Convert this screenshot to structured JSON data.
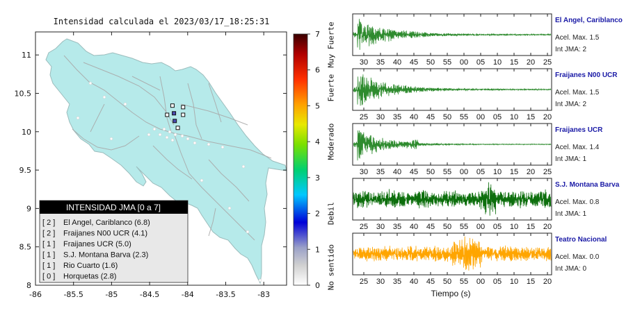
{
  "map": {
    "title": "Intensidad calculada el 2023/03/17_18:25:31",
    "x_ticks": [
      "-86",
      "-85.5",
      "-85",
      "-84.5",
      "-84",
      "-83.5",
      "-83"
    ],
    "y_ticks": [
      "11",
      "10.5",
      "10",
      "9.5",
      "9",
      "8.5",
      "8"
    ],
    "xlim": [
      -86,
      -82.7
    ],
    "ylim": [
      8,
      11.3
    ],
    "legend": {
      "header": "INTENSIDAD JMA [0 a 7]",
      "items": [
        {
          "level": "[ 2 ]",
          "label": "El Angel, Cariblanco (6.8)"
        },
        {
          "level": "[ 2 ]",
          "label": "Fraijanes N00 UCR (4.1)"
        },
        {
          "level": "[ 1 ]",
          "label": "Fraijanes UCR (5.0)"
        },
        {
          "level": "[ 1 ]",
          "label": "S.J. Montana Barva (2.3)"
        },
        {
          "level": "[ 1 ]",
          "label": "Rio Cuarto (1.6)"
        },
        {
          "level": "[ 0 ]",
          "label": "Horquetas (2.8)"
        }
      ]
    },
    "stations": [
      {
        "lon": -84.2,
        "lat": 10.34,
        "level": 0
      },
      {
        "lon": -84.06,
        "lat": 10.32,
        "level": 0
      },
      {
        "lon": -84.27,
        "lat": 10.22,
        "level": 0
      },
      {
        "lon": -84.18,
        "lat": 10.24,
        "level": 2
      },
      {
        "lon": -84.06,
        "lat": 10.22,
        "level": 0
      },
      {
        "lon": -84.17,
        "lat": 10.14,
        "level": 2
      },
      {
        "lon": -84.13,
        "lat": 10.05,
        "level": 0
      }
    ]
  },
  "colorbar": {
    "ticks": [
      "0",
      "1",
      "2",
      "3",
      "4",
      "5",
      "6",
      "7"
    ],
    "labels": [
      "No sentido",
      "Debil",
      "Moderado",
      "Fuerte",
      "Muy Fuerte"
    ],
    "colors": [
      "#ffffff",
      "#c8c8c8",
      "#7a86c8",
      "#0000d8",
      "#00c8ff",
      "#00d070",
      "#7ae000",
      "#e8e800",
      "#ffa000",
      "#ff3000",
      "#b00000",
      "#3a0000"
    ]
  },
  "chart_data": {
    "type": "line",
    "xlabel": "Tiempo (s)",
    "series": [
      {
        "name": "El Angel, Cariblanco",
        "accel_label": "Acel. Max. 1.5",
        "int_label": "Int JMA: 2",
        "color": "#2e8b2e",
        "ticks": [
          "30",
          "35",
          "40",
          "45",
          "50",
          "55",
          "00",
          "05",
          "10",
          "15",
          "20",
          "25"
        ],
        "shape": "decay"
      },
      {
        "name": "Fraijanes N00 UCR",
        "accel_label": "Acel. Max. 1.5",
        "int_label": "Int JMA: 2",
        "color": "#2e8b2e",
        "ticks": [
          "25",
          "30",
          "35",
          "40",
          "45",
          "50",
          "55",
          "00",
          "05",
          "10",
          "15",
          "20"
        ],
        "shape": "decay"
      },
      {
        "name": "Fraijanes UCR",
        "accel_label": "Acel. Max. 1.4",
        "int_label": "Int JMA: 1",
        "color": "#2e8b2e",
        "ticks": [
          "30",
          "35",
          "40",
          "45",
          "50",
          "55",
          "00",
          "05",
          "10",
          "15",
          "20",
          "25"
        ],
        "shape": "decay2"
      },
      {
        "name": "S.J. Montana Barva",
        "accel_label": "Acel. Max. 0.8",
        "int_label": "Int JMA: 1",
        "color": "#0c6e0c",
        "ticks": [
          "25",
          "30",
          "35",
          "40",
          "45",
          "50",
          "55",
          "00",
          "05",
          "10",
          "15",
          "20"
        ],
        "shape": "noise"
      },
      {
        "name": "Teatro Nacional",
        "accel_label": "Acel. Max. 0.0",
        "int_label": "Int JMA: 0",
        "color": "#ffa500",
        "ticks": [
          "25",
          "30",
          "35",
          "40",
          "45",
          "50",
          "55",
          "00",
          "05",
          "10",
          "15",
          "20"
        ],
        "shape": "noise2"
      }
    ]
  }
}
